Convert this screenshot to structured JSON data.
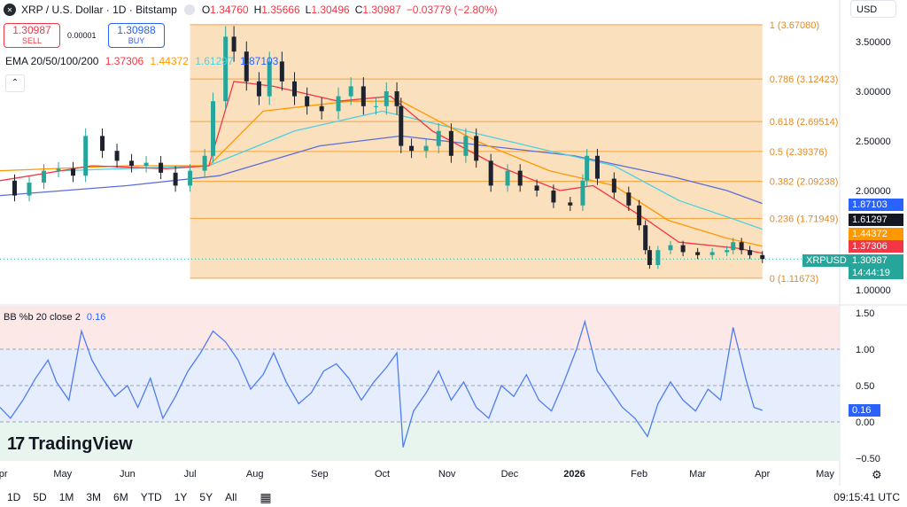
{
  "header": {
    "title": "XRP / U.S. Dollar · 1D · Bitstamp",
    "ohlc": {
      "o_label": "O",
      "o": "1.34760",
      "h_label": "H",
      "h": "1.35666",
      "l_label": "L",
      "l": "1.30496",
      "c_label": "C",
      "c": "1.30987",
      "change": "−0.03779 (−2.80%)"
    }
  },
  "trade": {
    "sell_price": "1.30987",
    "sell_label": "SELL",
    "spread": "0.00001",
    "buy_price": "1.30988",
    "buy_label": "BUY"
  },
  "ema_legend": {
    "label": "EMA 20/50/100/200",
    "v20": "1.37306",
    "v50": "1.44372",
    "v100": "1.61297",
    "v200": "1.87103"
  },
  "collapse_glyph": "⌃",
  "currency": "USD",
  "bb_legend": {
    "label": "BB %b 20 close 2",
    "value": "0.16"
  },
  "logo": "TradingView",
  "bottom": {
    "timeframes": [
      "1D",
      "5D",
      "1M",
      "3M",
      "6M",
      "YTD",
      "1Y",
      "5Y",
      "All"
    ],
    "clock": "09:15:41 UTC"
  },
  "price_tags": {
    "ema200": "1.87103",
    "ema100": "1.61297",
    "ema50": "1.44372",
    "ema20": "1.37306",
    "symbol": "XRPUSD",
    "last": "1.30987",
    "countdown": "14:44:19",
    "bb": "0.16"
  },
  "colors": {
    "up": "#26a69a",
    "down": "#1e222d",
    "ema20": "#f23645",
    "ema50": "#ff9800",
    "ema100": "#4dd0e1",
    "ema200": "#5b6fd6",
    "fib_fill": "#fbe0bd",
    "fib_line": "#f7a23a",
    "bb_line": "#4f7df0"
  },
  "chart_data": [
    {
      "type": "candlestick",
      "title": "XRP / U.S. Dollar · 1D · Bitstamp",
      "y_ticks": [
        1.0,
        1.5,
        2.0,
        2.5,
        3.0,
        3.5
      ],
      "y_tick_labels": [
        "1.00000",
        "1.50000",
        "2.00000",
        "2.50000",
        "3.00000",
        "3.50000"
      ],
      "ylim": [
        0.92,
        3.9
      ],
      "x_labels": [
        "Apr",
        "May",
        "Jun",
        "Jul",
        "Aug",
        "Sep",
        "Oct",
        "Nov",
        "Dec",
        "2026",
        "Feb",
        "Mar",
        "Apr",
        "May"
      ],
      "x_label_dates": [
        "2025-04-01",
        "2025-05-01",
        "2025-06-01",
        "2025-07-01",
        "2025-08-01",
        "2025-09-01",
        "2025-10-01",
        "2025-11-01",
        "2025-12-01",
        "2026-01-01",
        "2026-02-01",
        "2026-03-01",
        "2026-04-01",
        "2026-05-01"
      ],
      "xlim": [
        "2025-04-01",
        "2026-05-08"
      ],
      "close_series": [
        [
          "2025-04-01",
          2.1
        ],
        [
          "2025-04-08",
          1.95
        ],
        [
          "2025-04-15",
          2.08
        ],
        [
          "2025-04-22",
          2.2
        ],
        [
          "2025-04-29",
          2.22
        ],
        [
          "2025-05-06",
          2.15
        ],
        [
          "2025-05-12",
          2.55
        ],
        [
          "2025-05-20",
          2.4
        ],
        [
          "2025-05-27",
          2.3
        ],
        [
          "2025-06-03",
          2.25
        ],
        [
          "2025-06-10",
          2.28
        ],
        [
          "2025-06-17",
          2.18
        ],
        [
          "2025-06-24",
          2.05
        ],
        [
          "2025-07-01",
          2.2
        ],
        [
          "2025-07-08",
          2.35
        ],
        [
          "2025-07-12",
          2.9
        ],
        [
          "2025-07-18",
          3.55
        ],
        [
          "2025-07-22",
          3.4
        ],
        [
          "2025-07-28",
          3.1
        ],
        [
          "2025-08-03",
          2.95
        ],
        [
          "2025-08-08",
          3.3
        ],
        [
          "2025-08-14",
          3.1
        ],
        [
          "2025-08-20",
          2.95
        ],
        [
          "2025-08-26",
          2.85
        ],
        [
          "2025-09-02",
          2.8
        ],
        [
          "2025-09-10",
          2.95
        ],
        [
          "2025-09-16",
          3.05
        ],
        [
          "2025-09-22",
          2.85
        ],
        [
          "2025-09-28",
          2.85
        ],
        [
          "2025-10-03",
          3.0
        ],
        [
          "2025-10-08",
          2.85
        ],
        [
          "2025-10-10",
          2.45
        ],
        [
          "2025-10-15",
          2.4
        ],
        [
          "2025-10-22",
          2.45
        ],
        [
          "2025-10-28",
          2.6
        ],
        [
          "2025-11-03",
          2.35
        ],
        [
          "2025-11-10",
          2.55
        ],
        [
          "2025-11-15",
          2.3
        ],
        [
          "2025-11-22",
          2.05
        ],
        [
          "2025-11-30",
          2.2
        ],
        [
          "2025-12-06",
          2.05
        ],
        [
          "2025-12-14",
          2.0
        ],
        [
          "2025-12-22",
          1.88
        ],
        [
          "2025-12-30",
          1.85
        ],
        [
          "2026-01-05",
          2.1
        ],
        [
          "2026-01-07",
          2.35
        ],
        [
          "2026-01-12",
          2.12
        ],
        [
          "2026-01-20",
          1.98
        ],
        [
          "2026-01-27",
          1.85
        ],
        [
          "2026-02-01",
          1.65
        ],
        [
          "2026-02-04",
          1.4
        ],
        [
          "2026-02-06",
          1.25
        ],
        [
          "2026-02-10",
          1.4
        ],
        [
          "2026-02-16",
          1.45
        ],
        [
          "2026-02-22",
          1.38
        ],
        [
          "2026-03-01",
          1.35
        ],
        [
          "2026-03-08",
          1.38
        ],
        [
          "2026-03-15",
          1.4
        ],
        [
          "2026-03-18",
          1.48
        ],
        [
          "2026-03-22",
          1.4
        ],
        [
          "2026-03-26",
          1.35
        ],
        [
          "2026-04-01",
          1.31
        ]
      ],
      "ema20": [
        [
          "2025-04-01",
          2.1
        ],
        [
          "2025-05-15",
          2.25
        ],
        [
          "2025-06-20",
          2.22
        ],
        [
          "2025-07-10",
          2.25
        ],
        [
          "2025-07-22",
          3.1
        ],
        [
          "2025-08-10",
          3.05
        ],
        [
          "2025-09-10",
          2.9
        ],
        [
          "2025-10-05",
          2.95
        ],
        [
          "2025-10-25",
          2.6
        ],
        [
          "2025-11-25",
          2.25
        ],
        [
          "2025-12-25",
          2.0
        ],
        [
          "2026-01-10",
          2.05
        ],
        [
          "2026-02-05",
          1.7
        ],
        [
          "2026-02-20",
          1.48
        ],
        [
          "2026-03-20",
          1.42
        ],
        [
          "2026-04-01",
          1.37
        ]
      ],
      "ema50": [
        [
          "2025-04-01",
          2.2
        ],
        [
          "2025-06-01",
          2.25
        ],
        [
          "2025-07-10",
          2.25
        ],
        [
          "2025-08-05",
          2.8
        ],
        [
          "2025-09-15",
          2.9
        ],
        [
          "2025-10-10",
          2.9
        ],
        [
          "2025-11-15",
          2.5
        ],
        [
          "2025-12-20",
          2.2
        ],
        [
          "2026-01-20",
          2.05
        ],
        [
          "2026-02-15",
          1.7
        ],
        [
          "2026-03-15",
          1.52
        ],
        [
          "2026-04-01",
          1.44
        ]
      ],
      "ema100": [
        [
          "2025-05-01",
          2.2
        ],
        [
          "2025-07-10",
          2.25
        ],
        [
          "2025-08-20",
          2.6
        ],
        [
          "2025-10-01",
          2.8
        ],
        [
          "2025-11-10",
          2.6
        ],
        [
          "2025-12-20",
          2.4
        ],
        [
          "2026-01-20",
          2.25
        ],
        [
          "2026-02-20",
          1.9
        ],
        [
          "2026-03-20",
          1.7
        ],
        [
          "2026-04-01",
          1.61
        ]
      ],
      "ema200": [
        [
          "2025-04-01",
          1.95
        ],
        [
          "2025-06-01",
          2.05
        ],
        [
          "2025-07-15",
          2.15
        ],
        [
          "2025-09-01",
          2.45
        ],
        [
          "2025-10-10",
          2.55
        ],
        [
          "2025-11-20",
          2.45
        ],
        [
          "2026-01-01",
          2.35
        ],
        [
          "2026-02-15",
          2.15
        ],
        [
          "2026-03-15",
          2.0
        ],
        [
          "2026-04-01",
          1.87
        ]
      ],
      "fib_range": [
        "2025-07-01",
        "2026-04-01"
      ],
      "fib_levels": [
        {
          "label": "1 (3.67080)",
          "value": 3.6708
        },
        {
          "label": "0.786 (3.12423)",
          "value": 3.12423
        },
        {
          "label": "0.618 (2.69514)",
          "value": 2.69514
        },
        {
          "label": "0.5 (2.39376)",
          "value": 2.39376
        },
        {
          "label": "0.382 (2.09238)",
          "value": 2.09238
        },
        {
          "label": "0.236 (1.71949)",
          "value": 1.71949
        },
        {
          "label": "0 (1.11673)",
          "value": 1.11673
        }
      ],
      "last_price": 1.30987
    },
    {
      "type": "line",
      "title": "BB %b 20 close 2",
      "y_ticks": [
        -0.5,
        0,
        0.5,
        1.0,
        1.5
      ],
      "y_tick_labels": [
        "−0.50",
        "0.00",
        "0.50",
        "1.00",
        "1.50"
      ],
      "ylim": [
        -0.55,
        1.62
      ],
      "bands": {
        "upper": 1.0,
        "middle": 0.5,
        "lower": 0.0
      },
      "series": [
        {
          "values": [
            [
              "2025-04-01",
              0.2
            ],
            [
              "2025-04-06",
              0.05
            ],
            [
              "2025-04-12",
              0.3
            ],
            [
              "2025-04-18",
              0.6
            ],
            [
              "2025-04-24",
              0.85
            ],
            [
              "2025-04-28",
              0.55
            ],
            [
              "2025-05-04",
              0.3
            ],
            [
              "2025-05-10",
              1.25
            ],
            [
              "2025-05-15",
              0.85
            ],
            [
              "2025-05-20",
              0.6
            ],
            [
              "2025-05-26",
              0.35
            ],
            [
              "2025-06-01",
              0.5
            ],
            [
              "2025-06-06",
              0.2
            ],
            [
              "2025-06-12",
              0.6
            ],
            [
              "2025-06-18",
              0.05
            ],
            [
              "2025-06-24",
              0.35
            ],
            [
              "2025-06-30",
              0.7
            ],
            [
              "2025-07-06",
              0.95
            ],
            [
              "2025-07-12",
              1.25
            ],
            [
              "2025-07-18",
              1.1
            ],
            [
              "2025-07-24",
              0.85
            ],
            [
              "2025-07-30",
              0.45
            ],
            [
              "2025-08-05",
              0.65
            ],
            [
              "2025-08-10",
              0.95
            ],
            [
              "2025-08-16",
              0.55
            ],
            [
              "2025-08-22",
              0.25
            ],
            [
              "2025-08-28",
              0.4
            ],
            [
              "2025-09-03",
              0.7
            ],
            [
              "2025-09-09",
              0.8
            ],
            [
              "2025-09-15",
              0.6
            ],
            [
              "2025-09-21",
              0.3
            ],
            [
              "2025-09-27",
              0.55
            ],
            [
              "2025-10-03",
              0.75
            ],
            [
              "2025-10-08",
              0.95
            ],
            [
              "2025-10-11",
              -0.35
            ],
            [
              "2025-10-16",
              0.15
            ],
            [
              "2025-10-22",
              0.4
            ],
            [
              "2025-10-28",
              0.7
            ],
            [
              "2025-11-03",
              0.3
            ],
            [
              "2025-11-09",
              0.55
            ],
            [
              "2025-11-15",
              0.2
            ],
            [
              "2025-11-21",
              0.05
            ],
            [
              "2025-11-27",
              0.5
            ],
            [
              "2025-12-03",
              0.35
            ],
            [
              "2025-12-09",
              0.65
            ],
            [
              "2025-12-15",
              0.3
            ],
            [
              "2025-12-21",
              0.15
            ],
            [
              "2025-12-27",
              0.55
            ],
            [
              "2026-01-02",
              1.0
            ],
            [
              "2026-01-06",
              1.38
            ],
            [
              "2026-01-12",
              0.7
            ],
            [
              "2026-01-18",
              0.45
            ],
            [
              "2026-01-24",
              0.2
            ],
            [
              "2026-01-30",
              0.05
            ],
            [
              "2026-02-05",
              -0.2
            ],
            [
              "2026-02-10",
              0.25
            ],
            [
              "2026-02-16",
              0.55
            ],
            [
              "2026-02-22",
              0.3
            ],
            [
              "2026-02-28",
              0.15
            ],
            [
              "2026-03-06",
              0.45
            ],
            [
              "2026-03-12",
              0.3
            ],
            [
              "2026-03-18",
              1.3
            ],
            [
              "2026-03-24",
              0.6
            ],
            [
              "2026-03-28",
              0.2
            ],
            [
              "2026-04-01",
              0.16
            ]
          ]
        }
      ]
    }
  ]
}
